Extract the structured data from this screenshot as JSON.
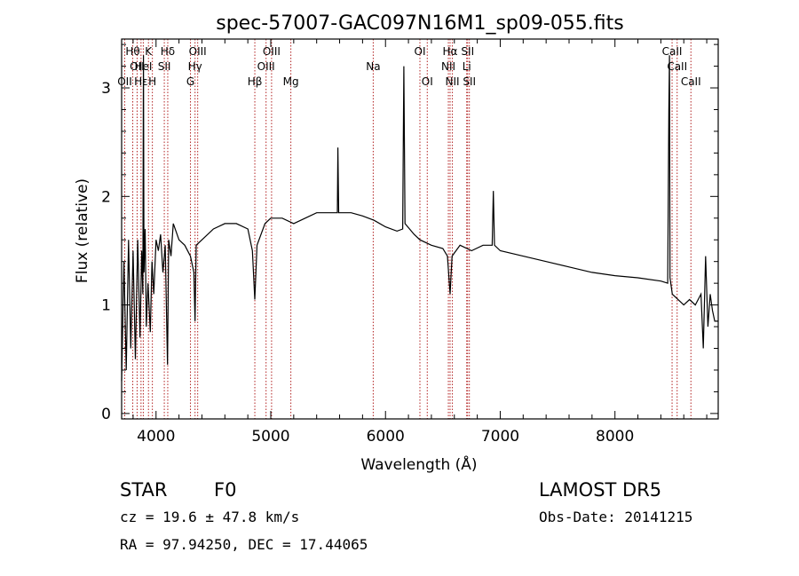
{
  "chart_data": {
    "type": "line",
    "title": "spec-57007-GAC097N16M1_sp09-055.fits",
    "xlabel": "Wavelength (Å)",
    "ylabel": "Flux (relative)",
    "xlim": [
      3700,
      8900
    ],
    "ylim": [
      -0.05,
      3.45
    ],
    "x_ticks": [
      4000,
      5000,
      6000,
      7000,
      8000
    ],
    "y_ticks": [
      0,
      1,
      2,
      3
    ],
    "grid": false,
    "series": [
      {
        "points": [
          [
            3700,
            0.3
          ],
          [
            3720,
            1.4
          ],
          [
            3740,
            0.4
          ],
          [
            3760,
            1.6
          ],
          [
            3780,
            0.6
          ],
          [
            3800,
            1.5
          ],
          [
            3820,
            0.5
          ],
          [
            3840,
            1.6
          ],
          [
            3860,
            0.7
          ],
          [
            3875,
            1.5
          ],
          [
            3885,
            1.1
          ],
          [
            3890,
            3.3
          ],
          [
            3895,
            1.3
          ],
          [
            3905,
            1.7
          ],
          [
            3915,
            0.8
          ],
          [
            3930,
            1.2
          ],
          [
            3950,
            0.75
          ],
          [
            3965,
            1.4
          ],
          [
            3980,
            1.1
          ],
          [
            4000,
            1.6
          ],
          [
            4020,
            1.5
          ],
          [
            4040,
            1.65
          ],
          [
            4060,
            1.3
          ],
          [
            4080,
            1.55
          ],
          [
            4100,
            0.45
          ],
          [
            4110,
            1.6
          ],
          [
            4130,
            1.45
          ],
          [
            4150,
            1.75
          ],
          [
            4200,
            1.6
          ],
          [
            4250,
            1.55
          ],
          [
            4300,
            1.45
          ],
          [
            4330,
            1.3
          ],
          [
            4340,
            0.85
          ],
          [
            4350,
            1.55
          ],
          [
            4400,
            1.6
          ],
          [
            4500,
            1.7
          ],
          [
            4600,
            1.75
          ],
          [
            4700,
            1.75
          ],
          [
            4800,
            1.7
          ],
          [
            4840,
            1.5
          ],
          [
            4861,
            1.05
          ],
          [
            4880,
            1.55
          ],
          [
            4950,
            1.75
          ],
          [
            5000,
            1.8
          ],
          [
            5100,
            1.8
          ],
          [
            5200,
            1.75
          ],
          [
            5300,
            1.8
          ],
          [
            5400,
            1.85
          ],
          [
            5500,
            1.85
          ],
          [
            5580,
            1.85
          ],
          [
            5585,
            2.45
          ],
          [
            5592,
            1.85
          ],
          [
            5700,
            1.85
          ],
          [
            5800,
            1.82
          ],
          [
            5900,
            1.78
          ],
          [
            6000,
            1.72
          ],
          [
            6100,
            1.68
          ],
          [
            6150,
            1.7
          ],
          [
            6160,
            3.2
          ],
          [
            6170,
            1.75
          ],
          [
            6250,
            1.65
          ],
          [
            6300,
            1.6
          ],
          [
            6400,
            1.55
          ],
          [
            6500,
            1.52
          ],
          [
            6540,
            1.45
          ],
          [
            6563,
            1.1
          ],
          [
            6580,
            1.45
          ],
          [
            6650,
            1.55
          ],
          [
            6750,
            1.5
          ],
          [
            6850,
            1.55
          ],
          [
            6930,
            1.55
          ],
          [
            6940,
            2.05
          ],
          [
            6950,
            1.55
          ],
          [
            7000,
            1.5
          ],
          [
            7200,
            1.45
          ],
          [
            7400,
            1.4
          ],
          [
            7600,
            1.35
          ],
          [
            7800,
            1.3
          ],
          [
            8000,
            1.27
          ],
          [
            8200,
            1.25
          ],
          [
            8400,
            1.22
          ],
          [
            8460,
            1.2
          ],
          [
            8470,
            2.8
          ],
          [
            8475,
            3.3
          ],
          [
            8480,
            1.25
          ],
          [
            8500,
            1.1
          ],
          [
            8550,
            1.05
          ],
          [
            8600,
            1.0
          ],
          [
            8650,
            1.05
          ],
          [
            8700,
            1.0
          ],
          [
            8750,
            1.1
          ],
          [
            8770,
            0.6
          ],
          [
            8790,
            1.45
          ],
          [
            8810,
            0.8
          ],
          [
            8830,
            1.1
          ],
          [
            8850,
            0.95
          ],
          [
            8870,
            0.85
          ],
          [
            8900,
            0.85
          ]
        ]
      }
    ],
    "lines": [
      {
        "wave": 3727,
        "label": "OII",
        "row": 3
      },
      {
        "wave": 3797,
        "label": "Hθ",
        "row": 1
      },
      {
        "wave": 3835,
        "label": "OII",
        "row": 2
      },
      {
        "wave": 3869,
        "label": "Hε",
        "row": 3
      },
      {
        "wave": 3889,
        "label": "HeI",
        "row": 2
      },
      {
        "wave": 3934,
        "label": "K",
        "row": 1
      },
      {
        "wave": 3968,
        "label": "H",
        "row": 3
      },
      {
        "wave": 4072,
        "label": "SII",
        "row": 2
      },
      {
        "wave": 4102,
        "label": "Hδ",
        "row": 1
      },
      {
        "wave": 4300,
        "label": "G",
        "row": 3
      },
      {
        "wave": 4340,
        "label": "Hγ",
        "row": 2
      },
      {
        "wave": 4363,
        "label": "OIII",
        "row": 1
      },
      {
        "wave": 4861,
        "label": "Hβ",
        "row": 3
      },
      {
        "wave": 4959,
        "label": "OIII",
        "row": 2
      },
      {
        "wave": 5007,
        "label": "OIII",
        "row": 1
      },
      {
        "wave": 5175,
        "label": "Mg",
        "row": 3
      },
      {
        "wave": 5893,
        "label": "Na",
        "row": 2
      },
      {
        "wave": 6300,
        "label": "OI",
        "row": 1
      },
      {
        "wave": 6364,
        "label": "OI",
        "row": 3
      },
      {
        "wave": 6548,
        "label": "NII",
        "row": 2
      },
      {
        "wave": 6563,
        "label": "Hα",
        "row": 1
      },
      {
        "wave": 6583,
        "label": "NII",
        "row": 3
      },
      {
        "wave": 6708,
        "label": "Li",
        "row": 2
      },
      {
        "wave": 6716,
        "label": "SII",
        "row": 1
      },
      {
        "wave": 6731,
        "label": "SII",
        "row": 3
      },
      {
        "wave": 8498,
        "label": "CaII",
        "row": 1
      },
      {
        "wave": 8542,
        "label": "CaII",
        "row": 2
      },
      {
        "wave": 8662,
        "label": "CaII",
        "row": 3
      }
    ],
    "colors": {
      "spectrum": "#000000",
      "line_marker": "#b22222",
      "axes": "#000000"
    }
  },
  "info": {
    "class": "STAR",
    "subclass": "F0",
    "survey": "LAMOST DR5",
    "cz": "cz = 19.6 ± 47.8 km/s",
    "obs_date": "Obs-Date: 20141215",
    "radec": "RA =  97.94250, DEC =  17.44065"
  }
}
